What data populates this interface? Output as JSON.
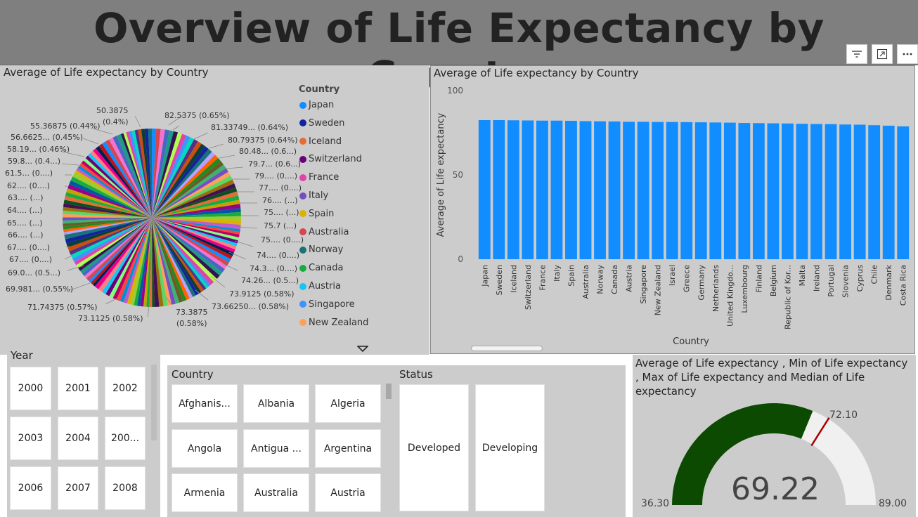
{
  "title": "Overview of Life Expectancy by Country",
  "toolbar": {
    "filter_icon": "filter-icon",
    "focus_icon": "focus-mode-icon",
    "more_icon": "more-options-icon"
  },
  "pie": {
    "title": "Average of Life expectancy by Country",
    "labels": [
      "50.3875",
      "(0.4%)",
      "82.5375 (0.65%)",
      "55.36875 (0.44%)",
      "81.33749... (0.64%)",
      "56.6625... (0.45%)",
      "80.79375 (0.64%)",
      "58.19... (0.46%)",
      "80.48... (0.6...)",
      "59.8... (0.4...)",
      "79.7... (0.6...)",
      "61.5... (0....)",
      "79.... (0....)",
      "62.... (0....)",
      "77.... (0....)",
      "63.... (...)",
      "76.... (...)",
      "64.... (...)",
      "75.... (...)",
      "65.... (...)",
      "75.7 (...)",
      "66.... (...)",
      "75.... (0....)",
      "67.... (0....)",
      "74.... (0....)",
      "67.... (0....)",
      "74.3... (0....)",
      "69.0... (0.5...)",
      "74.26... (0.5...)",
      "69.981... (0.55%)",
      "73.9125 (0.58%)",
      "71.74375 (0.57%)",
      "73.66250... (0.58%)",
      "73.1125 (0.58%)",
      "73.3875",
      "(0.58%)"
    ],
    "legend_title": "Country",
    "legend": [
      {
        "name": "Japan",
        "color": "#118DFF"
      },
      {
        "name": "Sweden",
        "color": "#12239E"
      },
      {
        "name": "Iceland",
        "color": "#E66C37"
      },
      {
        "name": "Switzerland",
        "color": "#6B007B"
      },
      {
        "name": "France",
        "color": "#E044A7"
      },
      {
        "name": "Italy",
        "color": "#744EC2"
      },
      {
        "name": "Spain",
        "color": "#D9B300"
      },
      {
        "name": "Australia",
        "color": "#D64550"
      },
      {
        "name": "Norway",
        "color": "#197278"
      },
      {
        "name": "Canada",
        "color": "#1AAB40"
      },
      {
        "name": "Austria",
        "color": "#15C6F4"
      },
      {
        "name": "Singapore",
        "color": "#4092FF"
      },
      {
        "name": "New Zealand",
        "color": "#FFA058"
      }
    ]
  },
  "bar": {
    "title": "Average of Life expectancy by Country",
    "ylabel": "Average of Life expectancy",
    "xlabel": "Country"
  },
  "chart_data": {
    "type": "bar",
    "title": "Average of Life expectancy by Country",
    "xlabel": "Country",
    "ylabel": "Average of Life expectancy",
    "ylim": [
      0,
      100
    ],
    "yticks": [
      "100",
      "50",
      "0"
    ],
    "color": "#118DFF",
    "categories": [
      "Japan",
      "Sweden",
      "Iceland",
      "Switzerland",
      "France",
      "Italy",
      "Spain",
      "Australia",
      "Norway",
      "Canada",
      "Austria",
      "Singapore",
      "New Zealand",
      "Israel",
      "Greece",
      "Germany",
      "Netherlands",
      "United Kingdo...",
      "Luxembourg",
      "Finland",
      "Belgium",
      "Republic of Kor...",
      "Malta",
      "Ireland",
      "Portugal",
      "Slovenia",
      "Cyprus",
      "Chile",
      "Denmark",
      "Costa Rica"
    ],
    "values": [
      82.5,
      82.5,
      82.4,
      82.3,
      82.2,
      82.2,
      82.1,
      81.9,
      81.8,
      81.7,
      81.5,
      81.5,
      81.4,
      81.4,
      81.3,
      81.2,
      81.1,
      81.0,
      80.8,
      80.7,
      80.6,
      80.5,
      80.3,
      80.2,
      80.1,
      79.9,
      79.8,
      79.5,
      79.2,
      78.8
    ]
  },
  "year_slicer": {
    "label": "Year",
    "items": [
      "2000",
      "2001",
      "2002",
      "2003",
      "2004",
      "200...",
      "2006",
      "2007",
      "2008"
    ]
  },
  "country_slicer": {
    "label": "Country",
    "items": [
      "Afghanis...",
      "Albania",
      "Algeria",
      "Angola",
      "Antigua ...",
      "Argentina",
      "Armenia",
      "Australia",
      "Austria"
    ]
  },
  "status_slicer": {
    "label": "Status",
    "items": [
      "Developed",
      "Developing"
    ]
  },
  "gauge": {
    "title": "Average of Life expectancy , Min of Life expectancy , Max of Life expectancy and Median of Life expectancy",
    "value": "69.22",
    "min": "36.30",
    "max": "89.00",
    "target": "72.10",
    "value_num": 69.22,
    "min_num": 36.3,
    "max_num": 89.0,
    "target_num": 72.1,
    "fill_color": "#0B4A00",
    "track_color": "#F0F0F0",
    "target_color": "#A80000"
  }
}
